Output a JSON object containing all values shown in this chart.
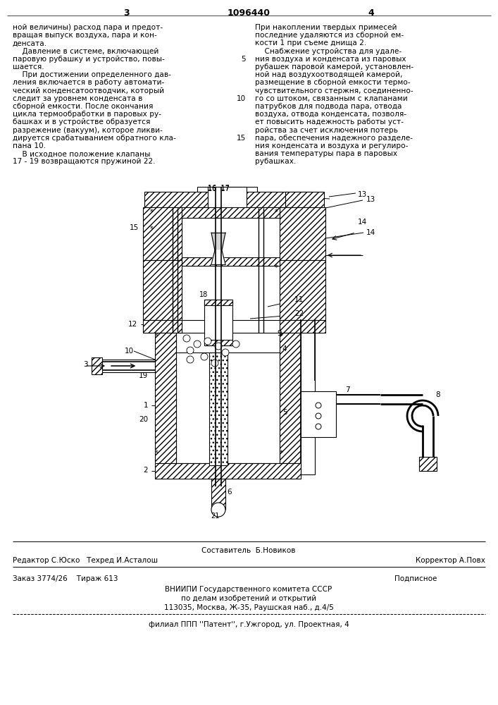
{
  "page_number_left": "3",
  "page_number_center": "1096440",
  "page_number_right": "4",
  "left_column_text": [
    "ной величины) расход пара и предот-",
    "вращая выпуск воздуха, пара и кон-",
    "денсата.",
    "    Давление в системе, включающей",
    "паровую рубашку и устройство, повы-",
    "шается.",
    "    При достижении определенного дав-",
    "ления включается в работу автомати-",
    "ческий конденсатоотводчик, который",
    "следит за уровнем конденсата в",
    "сборной емкости. После окончания",
    "цикла термообработки в паровых ру-",
    "башках и в устройстве образуется",
    "разрежение (вакуум), которое ликви-",
    "дируется срабатыванием обратного кла-",
    "пана 10.",
    "    В исходное положение клапаны",
    "17 - 19 возвращаются пружиной 22."
  ],
  "right_column_text": [
    "При накоплении твердых примесей",
    "последние удаляются из сборной ем-",
    "кости 1 при съеме днища 2.",
    "    Снабжение устройства для удале-",
    "ния воздуха и конденсата из паровых",
    "рубашек паровой камерой, установлен-",
    "ной над воздухоотводящей камерой,",
    "размещение в сборной емкости термо-",
    "чувствительного стержня, соединенно-",
    "го со штоком, связанным с клапанами",
    "патрубков для подвода пара, отвода",
    "воздуха, отвода конденсата, позволя-",
    "ет повысить надежность работы уст-",
    "ройства за счет исключения потерь",
    "пара, обеспечения надежного разделе-",
    "ния конденсата и воздуха и регулиро-",
    "вания температуры пара в паровых",
    "рубашках."
  ],
  "footer_composer": "Составитель  Б.Новиков",
  "footer_editor": "Редактор С.Юско   Техред И.Асталош",
  "footer_corrector": "Корректор А.Повх",
  "footer_order": "Заказ 3774/26    Тираж 613",
  "footer_podp": "Подписное",
  "footer_org1": "ВНИИПИ Государственного комитета СССР",
  "footer_org2": "по делам изобретений и открытий",
  "footer_org3": "113035, Москва, Ж-35, Раушская наб., д.4/5",
  "footer_branch": "филиал ППП ''Патент'', г.Ужгород, ул. Проектная, 4",
  "bg_color": "#ffffff"
}
